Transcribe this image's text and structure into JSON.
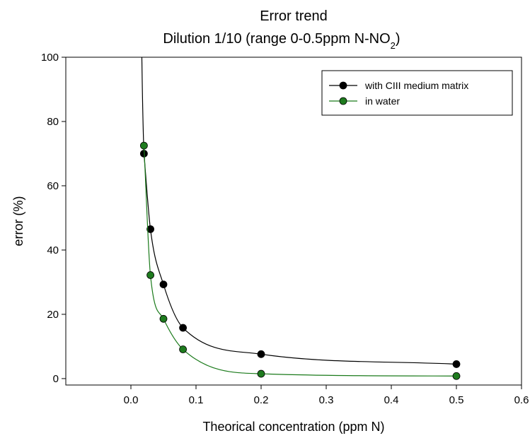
{
  "chart_data": {
    "type": "line",
    "title": "Error trend",
    "subtitle_prefix": "Dilution 1/10 (range 0-0.5ppm N-NO",
    "subtitle_subscript": "2",
    "subtitle_suffix": ")",
    "xlabel": "Theorical concentration (ppm N)",
    "ylabel": "error (%)",
    "xlim": [
      -0.1,
      0.6
    ],
    "ylim": [
      -2,
      100
    ],
    "xticks": [
      0.0,
      0.1,
      0.2,
      0.3,
      0.4,
      0.5,
      0.6
    ],
    "xtick_labels": [
      "0.0",
      "0.1",
      "0.2",
      "0.3",
      "0.4",
      "0.5",
      "0.6"
    ],
    "yticks": [
      0,
      20,
      40,
      60,
      80,
      100
    ],
    "ytick_labels": [
      "0",
      "20",
      "40",
      "60",
      "80",
      "100"
    ],
    "grid": false,
    "legend_position": "top-right",
    "series": [
      {
        "name": "with CIII medium matrix",
        "color": "#000000",
        "marker_color": "#000000",
        "x": [
          0.02,
          0.03,
          0.05,
          0.08,
          0.2,
          0.5
        ],
        "y": [
          70,
          46.5,
          29.3,
          15.8,
          7.6,
          4.5
        ]
      },
      {
        "name": "in water",
        "color": "#1a7a1a",
        "marker_color": "#1e7b1e",
        "x": [
          0.02,
          0.03,
          0.05,
          0.08,
          0.2,
          0.5
        ],
        "y": [
          72.5,
          32.2,
          18.6,
          9.1,
          1.5,
          0.8
        ]
      }
    ]
  }
}
